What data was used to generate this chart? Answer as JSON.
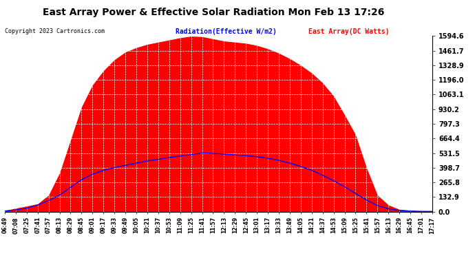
{
  "title": "East Array Power & Effective Solar Radiation Mon Feb 13 17:26",
  "copyright": "Copyright 2023 Cartronics.com",
  "legend_radiation": "Radiation(Effective W/m2)",
  "legend_array": "East Array(DC Watts)",
  "y_max": 1594.6,
  "y_min": 0.0,
  "y_ticks": [
    0.0,
    132.9,
    265.8,
    398.7,
    531.5,
    664.4,
    797.3,
    930.2,
    1063.1,
    1196.0,
    1328.9,
    1461.7,
    1594.6
  ],
  "radiation_color": "#0000ff",
  "array_color": "#ff0000",
  "background_color": "#ffffff",
  "grid_color": "#aaaaaa",
  "title_color": "black",
  "x_labels": [
    "06:49",
    "07:08",
    "07:25",
    "07:41",
    "07:57",
    "08:13",
    "08:29",
    "08:45",
    "09:01",
    "09:17",
    "09:33",
    "09:49",
    "10:05",
    "10:21",
    "10:37",
    "10:53",
    "11:09",
    "11:25",
    "11:41",
    "11:57",
    "12:13",
    "12:29",
    "12:45",
    "13:01",
    "13:17",
    "13:33",
    "13:49",
    "14:05",
    "14:21",
    "14:37",
    "14:53",
    "15:09",
    "15:25",
    "15:41",
    "15:57",
    "16:13",
    "16:29",
    "16:45",
    "17:01",
    "17:17"
  ],
  "array_vals": [
    10,
    30,
    50,
    70,
    150,
    350,
    650,
    950,
    1150,
    1280,
    1380,
    1450,
    1490,
    1520,
    1540,
    1560,
    1580,
    1594,
    1590,
    1570,
    1550,
    1540,
    1530,
    1510,
    1480,
    1440,
    1390,
    1330,
    1260,
    1170,
    1050,
    880,
    700,
    400,
    150,
    60,
    20,
    10,
    5,
    2
  ],
  "radiation_vals": [
    5,
    15,
    30,
    60,
    100,
    150,
    220,
    290,
    340,
    375,
    400,
    420,
    440,
    460,
    475,
    490,
    505,
    518,
    531,
    528,
    522,
    515,
    508,
    498,
    485,
    465,
    440,
    410,
    375,
    330,
    280,
    225,
    165,
    105,
    55,
    25,
    10,
    5,
    2,
    1
  ]
}
